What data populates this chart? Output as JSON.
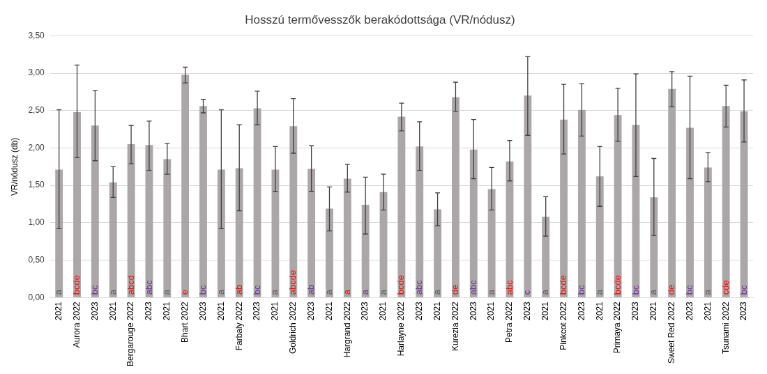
{
  "chart_data": {
    "type": "bar",
    "title": "Hosszú termővesszők berakódottsága (VR/nódusz)",
    "ylabel": "VR/nódusz (db)",
    "categories": [
      "2021",
      "Aurora 2022",
      "2023",
      "2021",
      "Bergarouge 2022",
      "2023",
      "2021",
      "Bhart 2022",
      "2023",
      "2021",
      "Farbaly 2022",
      "2023",
      "2021",
      "Goldrich 2022",
      "2023",
      "2021",
      "Hargrand 2022",
      "2023",
      "2021",
      "Harlayne 2022",
      "2023",
      "2021",
      "Kurezia 2022",
      "2023",
      "2021",
      "Petra 2022",
      "2023",
      "2021",
      "Pinkcot 2022",
      "2023",
      "2021",
      "Primaya 2022",
      "2023",
      "2021",
      "Sweet Red 2022",
      "2023",
      "2021",
      "Tsunami 2022",
      "2023"
    ],
    "values": [
      1.71,
      2.48,
      2.3,
      1.54,
      2.05,
      2.04,
      1.85,
      2.98,
      2.56,
      1.71,
      1.73,
      2.53,
      1.71,
      2.29,
      1.72,
      1.19,
      1.59,
      1.24,
      1.41,
      2.42,
      2.02,
      1.18,
      2.68,
      1.98,
      1.45,
      1.82,
      2.7,
      1.08,
      2.38,
      2.51,
      1.62,
      2.44,
      2.31,
      1.34,
      2.79,
      2.27,
      1.74,
      2.56,
      2.49
    ],
    "errors": [
      [
        0.92,
        2.51
      ],
      [
        1.87,
        3.11
      ],
      [
        1.83,
        2.77
      ],
      [
        1.34,
        1.75
      ],
      [
        1.79,
        2.3
      ],
      [
        1.7,
        2.36
      ],
      [
        1.65,
        2.06
      ],
      [
        2.87,
        3.08
      ],
      [
        2.47,
        2.65
      ],
      [
        0.92,
        2.51
      ],
      [
        1.16,
        2.31
      ],
      [
        2.31,
        2.76
      ],
      [
        1.42,
        2.02
      ],
      [
        1.93,
        2.66
      ],
      [
        1.42,
        2.03
      ],
      [
        0.89,
        1.48
      ],
      [
        1.41,
        1.78
      ],
      [
        0.85,
        1.61
      ],
      [
        1.17,
        1.65
      ],
      [
        2.23,
        2.6
      ],
      [
        1.7,
        2.35
      ],
      [
        0.96,
        1.4
      ],
      [
        2.49,
        2.88
      ],
      [
        1.59,
        2.38
      ],
      [
        1.17,
        1.74
      ],
      [
        1.56,
        2.1
      ],
      [
        2.17,
        3.22
      ],
      [
        0.82,
        1.35
      ],
      [
        1.92,
        2.85
      ],
      [
        2.16,
        2.86
      ],
      [
        1.22,
        2.02
      ],
      [
        2.09,
        2.8
      ],
      [
        1.62,
        2.99
      ],
      [
        0.83,
        1.86
      ],
      [
        2.55,
        3.02
      ],
      [
        1.59,
        2.96
      ],
      [
        1.55,
        1.94
      ],
      [
        2.28,
        2.84
      ],
      [
        2.08,
        2.91
      ]
    ],
    "value_labels": [
      "a",
      "bcde",
      "bc",
      "a",
      "abcd",
      "abc",
      "a",
      "e",
      "bc",
      "a",
      "ab",
      "bc",
      "a",
      "abcde",
      "ab",
      "a",
      "a",
      "a",
      "a",
      "bcde",
      "abc",
      "a",
      "de",
      "abc",
      "a",
      "abc",
      "c",
      "a",
      "bcde",
      "bc",
      "a",
      "bcde",
      "bc",
      "a",
      "de",
      "bc",
      "a",
      "cde",
      "bc"
    ],
    "color": "#aaa7a6",
    "ylim": [
      0,
      3.5
    ],
    "yticks": [
      {
        "value": 0,
        "label": "0,00"
      },
      {
        "value": 0.5,
        "label": "0,50"
      },
      {
        "value": 1,
        "label": "1,00"
      },
      {
        "value": 1.5,
        "label": "1,50"
      },
      {
        "value": 2,
        "label": "2,00"
      },
      {
        "value": 2.5,
        "label": "2,50"
      },
      {
        "value": 3,
        "label": "3,00"
      },
      {
        "value": 3.5,
        "label": "3,50"
      }
    ],
    "grid": "y",
    "legend": false
  }
}
